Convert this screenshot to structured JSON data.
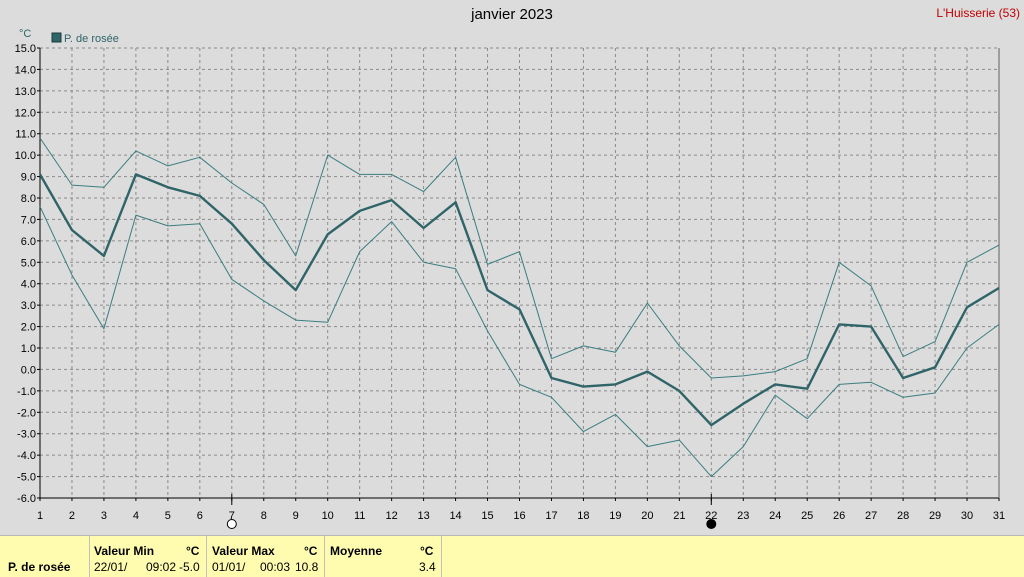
{
  "title": "janvier 2023",
  "station": "L'Huisserie (53)",
  "colors": {
    "series": "#2f6468",
    "band": "#3a7e80",
    "grid": "#8a8a8a",
    "plot_bg": "#dcdcdc",
    "footer_bg": "#fffcb0",
    "station": "#c00000"
  },
  "chart_data": {
    "type": "line",
    "title": "janvier 2023",
    "ylabel": "°C",
    "ylim": [
      -6.0,
      15.0
    ],
    "ytick_step": 1.0,
    "grid": true,
    "legend": "top-left",
    "x": [
      1,
      2,
      3,
      4,
      5,
      6,
      7,
      8,
      9,
      10,
      11,
      12,
      13,
      14,
      15,
      16,
      17,
      18,
      19,
      20,
      21,
      22,
      23,
      24,
      25,
      26,
      27,
      28,
      29,
      30,
      31
    ],
    "series": [
      {
        "name": "P. de rosée",
        "role": "mean",
        "values": [
          9.1,
          6.5,
          5.3,
          9.1,
          8.5,
          8.1,
          6.8,
          5.1,
          3.7,
          6.3,
          7.4,
          7.9,
          6.6,
          7.8,
          3.7,
          2.8,
          -0.4,
          -0.8,
          -0.7,
          -0.1,
          -1.0,
          -2.6,
          -1.6,
          -0.7,
          -0.9,
          2.1,
          2.0,
          -0.4,
          0.1,
          2.9,
          3.8
        ]
      },
      {
        "role": "max",
        "values": [
          10.8,
          8.6,
          8.5,
          10.2,
          9.5,
          9.9,
          8.7,
          7.7,
          5.3,
          10.0,
          9.1,
          9.1,
          8.3,
          9.9,
          4.9,
          5.5,
          0.5,
          1.1,
          0.8,
          3.1,
          1.1,
          -0.4,
          -0.3,
          -0.1,
          0.5,
          5.0,
          3.9,
          0.6,
          1.3,
          5.0,
          5.8
        ]
      },
      {
        "role": "min",
        "values": [
          7.6,
          4.4,
          1.9,
          7.2,
          6.7,
          6.8,
          4.2,
          3.2,
          2.3,
          2.2,
          5.5,
          6.9,
          5.0,
          4.7,
          1.8,
          -0.7,
          -1.3,
          -2.9,
          -2.1,
          -3.6,
          -3.3,
          -5.0,
          -3.6,
          -1.2,
          -2.3,
          -0.7,
          -0.6,
          -1.3,
          -1.1,
          1.0,
          2.1
        ]
      }
    ],
    "markers": [
      {
        "day": 7,
        "type": "open-circle"
      },
      {
        "day": 22,
        "type": "filled-circle"
      }
    ]
  },
  "footer": {
    "param_label": "P. de rosée",
    "min": {
      "header": "Valeur Min",
      "unit": "°C",
      "date": "22/01/",
      "time": "09:02",
      "value": "-5.0"
    },
    "max": {
      "header": "Valeur Max",
      "unit": "°C",
      "date": "01/01/",
      "time": "00:03",
      "value": "10.8"
    },
    "mean": {
      "header": "Moyenne",
      "unit": "°C",
      "value": "3.4"
    }
  }
}
